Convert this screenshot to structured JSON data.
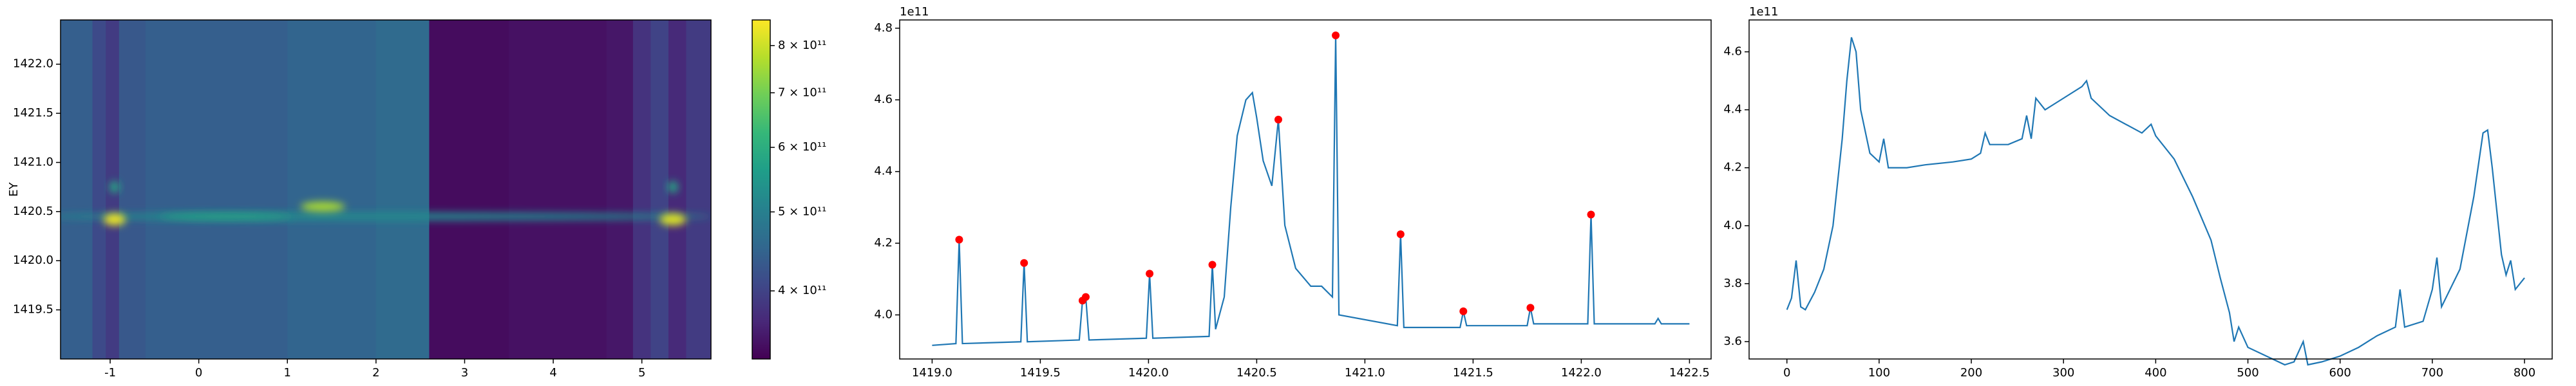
{
  "chart_data": [
    {
      "type": "heatmap",
      "ylabel": "EY",
      "xlim": [
        -1.56,
        5.78
      ],
      "ylim": [
        1419.0,
        1422.45
      ],
      "xticks": [
        -1,
        0,
        1,
        2,
        3,
        4,
        5
      ],
      "yticks": [
        1419.5,
        {
          "value": 1420,
          "label": "1420.0"
        },
        1420.5,
        {
          "value": 1421,
          "label": "1421.0"
        },
        1421.5,
        {
          "value": 1422,
          "label": "1422.0"
        }
      ],
      "colormap": [
        "#440154",
        "#482878",
        "#3e4989",
        "#31688e",
        "#26828e",
        "#1f9e89",
        "#35b779",
        "#6ece58",
        "#b5de2b",
        "#fde725"
      ],
      "clim": [
        330000000000,
        860000000000
      ],
      "clog": true,
      "cticks": [
        {
          "value": 400000000000,
          "label": "4 × 10¹¹"
        },
        {
          "value": 500000000000,
          "label": "5 × 10¹¹"
        },
        {
          "value": 600000000000,
          "label": "6 × 10¹¹"
        },
        {
          "value": 700000000000,
          "label": "7 × 10¹¹"
        },
        {
          "value": 800000000000,
          "label": "8 × 10¹¹"
        }
      ],
      "x_edges": [
        -1.56,
        -1.2,
        -1.05,
        -0.9,
        -0.6,
        1.0,
        2.0,
        2.6,
        3.5,
        4.6,
        4.9,
        5.1,
        5.3,
        5.5,
        5.78
      ],
      "column_values": [
        440000000000,
        410000000000,
        390000000000,
        430000000000,
        440000000000,
        450000000000,
        460000000000,
        340000000000,
        345000000000,
        350000000000,
        380000000000,
        400000000000,
        370000000000,
        390000000000
      ],
      "hotspots": [
        {
          "x": 2.0,
          "y": 1420.45,
          "value": 520000000000,
          "xspan": 7.6,
          "yspan": 0.08
        },
        {
          "x": 0.3,
          "y": 1420.45,
          "value": 580000000000,
          "xspan": 1.5,
          "yspan": 0.06
        },
        {
          "x": -0.95,
          "y": 1420.75,
          "value": 580000000000,
          "xspan": 0.12,
          "yspan": 0.12
        },
        {
          "x": 5.35,
          "y": 1420.75,
          "value": 580000000000,
          "xspan": 0.12,
          "yspan": 0.12
        },
        {
          "x": 1.4,
          "y": 1420.55,
          "value": 760000000000,
          "xspan": 0.5,
          "yspan": 0.1
        },
        {
          "x": -0.95,
          "y": 1420.42,
          "value": 840000000000,
          "xspan": 0.25,
          "yspan": 0.12
        },
        {
          "x": 5.35,
          "y": 1420.42,
          "value": 820000000000,
          "xspan": 0.3,
          "yspan": 0.12
        }
      ]
    },
    {
      "type": "line",
      "y_offset_label": "1e11",
      "xlim": [
        1418.85,
        1422.6
      ],
      "ylim": [
        3.877,
        4.823
      ],
      "xticks": [
        {
          "value": 1419,
          "label": "1419.0"
        },
        1419.5,
        {
          "value": 1420,
          "label": "1420.0"
        },
        1420.5,
        {
          "value": 1421,
          "label": "1421.0"
        },
        1421.5,
        {
          "value": 1422,
          "label": "1422.0"
        },
        1422.5
      ],
      "yticks": [
        {
          "value": 4,
          "label": "4.0"
        },
        4.2,
        4.4,
        4.6,
        4.8
      ],
      "series": [
        {
          "type": "line",
          "color": "#1f77b4",
          "x": [
            1419.0,
            1419.11,
            1419.125,
            1419.14,
            1419.41,
            1419.425,
            1419.44,
            1419.68,
            1419.695,
            1419.71,
            1419.725,
            1419.99,
            1420.005,
            1420.02,
            1420.28,
            1420.295,
            1420.31,
            1420.35,
            1420.38,
            1420.41,
            1420.45,
            1420.48,
            1420.5,
            1420.53,
            1420.57,
            1420.6,
            1420.63,
            1420.68,
            1420.75,
            1420.8,
            1420.85,
            1420.865,
            1420.88,
            1421.15,
            1421.165,
            1421.18,
            1421.44,
            1421.455,
            1421.47,
            1421.75,
            1421.765,
            1421.78,
            1422.03,
            1422.045,
            1422.06,
            1422.34,
            1422.355,
            1422.37,
            1422.5
          ],
          "values": [
            3.915,
            3.92,
            4.21,
            3.92,
            3.925,
            4.145,
            3.925,
            3.93,
            4.04,
            4.05,
            3.93,
            3.935,
            4.115,
            3.935,
            3.94,
            4.14,
            3.96,
            4.05,
            4.3,
            4.5,
            4.6,
            4.62,
            4.55,
            4.43,
            4.36,
            4.545,
            4.25,
            4.13,
            4.08,
            4.08,
            4.05,
            4.78,
            4.0,
            3.97,
            4.225,
            3.965,
            3.965,
            4.01,
            3.97,
            3.97,
            4.02,
            3.975,
            3.975,
            4.28,
            3.975,
            3.975,
            3.99,
            3.975,
            3.975
          ]
        },
        {
          "type": "scatter",
          "color": "#ff0000",
          "x": [
            1419.125,
            1419.425,
            1419.695,
            1419.71,
            1420.005,
            1420.295,
            1420.6,
            1420.865,
            1421.165,
            1421.455,
            1421.765,
            1422.045
          ],
          "values": [
            4.21,
            4.145,
            4.04,
            4.05,
            4.115,
            4.14,
            4.545,
            4.78,
            4.225,
            4.01,
            4.02,
            4.28
          ]
        }
      ]
    },
    {
      "type": "line",
      "y_offset_label": "1e11",
      "xlim": [
        -41,
        830
      ],
      "ylim": [
        3.54,
        4.71
      ],
      "xticks": [
        0,
        100,
        200,
        300,
        400,
        500,
        600,
        700,
        800
      ],
      "yticks": [
        3.6,
        3.8,
        {
          "value": 4,
          "label": "4.0"
        },
        4.2,
        4.4,
        4.6
      ],
      "series": [
        {
          "type": "line",
          "color": "#1f77b4",
          "x": [
            0,
            5,
            10,
            15,
            20,
            30,
            40,
            50,
            60,
            65,
            70,
            75,
            80,
            90,
            100,
            105,
            110,
            130,
            150,
            180,
            200,
            210,
            215,
            220,
            240,
            255,
            260,
            265,
            270,
            280,
            300,
            320,
            325,
            330,
            350,
            385,
            395,
            400,
            420,
            440,
            460,
            470,
            480,
            485,
            490,
            500,
            520,
            540,
            550,
            560,
            565,
            580,
            600,
            620,
            640,
            660,
            665,
            670,
            690,
            700,
            705,
            710,
            730,
            745,
            755,
            760,
            765,
            775,
            780,
            785,
            790,
            800
          ],
          "values": [
            3.71,
            3.75,
            3.88,
            3.72,
            3.71,
            3.77,
            3.85,
            4.0,
            4.3,
            4.5,
            4.65,
            4.6,
            4.4,
            4.25,
            4.22,
            4.3,
            4.2,
            4.2,
            4.21,
            4.22,
            4.23,
            4.25,
            4.32,
            4.28,
            4.28,
            4.3,
            4.38,
            4.3,
            4.44,
            4.4,
            4.44,
            4.48,
            4.5,
            4.44,
            4.38,
            4.32,
            4.35,
            4.31,
            4.23,
            4.1,
            3.95,
            3.82,
            3.7,
            3.6,
            3.65,
            3.58,
            3.55,
            3.52,
            3.53,
            3.6,
            3.52,
            3.53,
            3.55,
            3.58,
            3.62,
            3.65,
            3.78,
            3.65,
            3.67,
            3.78,
            3.89,
            3.72,
            3.85,
            4.1,
            4.32,
            4.33,
            4.2,
            3.9,
            3.83,
            3.88,
            3.78,
            3.82
          ]
        }
      ]
    }
  ]
}
